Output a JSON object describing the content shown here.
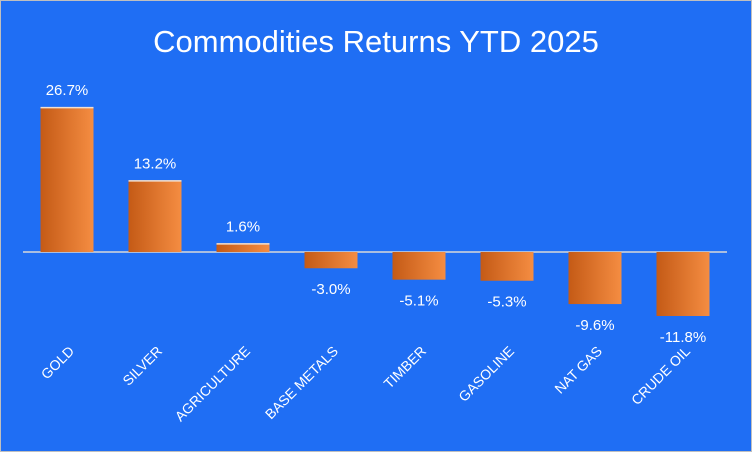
{
  "chart_data": {
    "type": "bar",
    "title": "Commodities Returns YTD 2025",
    "categories": [
      "GOLD",
      "SILVER",
      "AGRICULTURE",
      "BASE METALS",
      "TIMBER",
      "GASOLINE",
      "NAT GAS",
      "CRUDE OIL"
    ],
    "values": [
      26.7,
      13.2,
      1.6,
      -3.0,
      -5.1,
      -5.3,
      -9.6,
      -11.8
    ],
    "value_labels": [
      "26.7%",
      "13.2%",
      "1.6%",
      "-3.0%",
      "-5.1%",
      "-5.3%",
      "-9.6%",
      "-11.8%"
    ],
    "color": "#e8782c",
    "background": "#1f6ef4"
  }
}
